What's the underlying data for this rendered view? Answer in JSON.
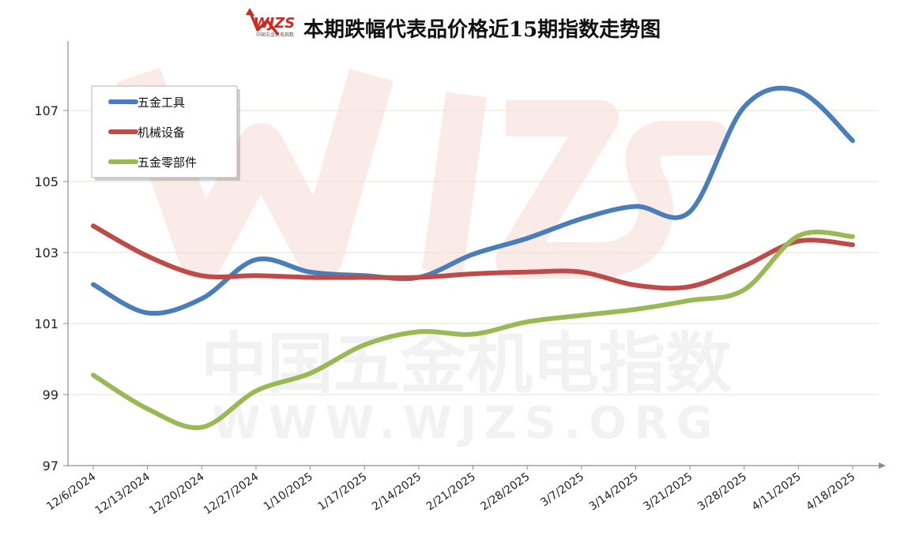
{
  "logo": {
    "text": "WJZS",
    "subtext": "中国五金机电指数"
  },
  "watermark": {
    "line1": "中国五金机电指数",
    "line2": "WWW.WJZS.ORG"
  },
  "colors": {
    "grid": "#e6e6d0",
    "axis": "#8c8c8c"
  },
  "chart_data": {
    "type": "line",
    "title": "本期跌幅代表品价格近15期指数走势图",
    "categories": [
      "12/6/2024",
      "12/13/2024",
      "12/20/2024",
      "12/27/2024",
      "1/10/2025",
      "1/17/2025",
      "2/14/2025",
      "2/21/2025",
      "2/28/2025",
      "3/7/2025",
      "3/14/2025",
      "3/21/2025",
      "3/28/2025",
      "4/11/2025",
      "4/18/2025"
    ],
    "ylim": [
      97,
      109
    ],
    "yticks": [
      97,
      99,
      101,
      103,
      105,
      107
    ],
    "grid": true,
    "legend_position": "top-left",
    "series": [
      {
        "name": "五金工具",
        "color": "#4a7ebb",
        "values": [
          102.1,
          101.3,
          101.7,
          102.8,
          102.45,
          102.35,
          102.3,
          102.95,
          103.4,
          103.95,
          104.3,
          104.15,
          107.1,
          107.55,
          106.15
        ]
      },
      {
        "name": "机械设备",
        "color": "#be4b48",
        "values": [
          103.75,
          102.9,
          102.35,
          102.35,
          102.3,
          102.3,
          102.3,
          102.4,
          102.45,
          102.45,
          102.08,
          102.04,
          102.62,
          103.32,
          103.22
        ]
      },
      {
        "name": "五金零部件",
        "color": "#98b954",
        "values": [
          99.55,
          98.6,
          98.08,
          99.1,
          99.6,
          100.4,
          100.77,
          100.7,
          101.05,
          101.23,
          101.4,
          101.65,
          101.95,
          103.47,
          103.45
        ]
      }
    ]
  }
}
